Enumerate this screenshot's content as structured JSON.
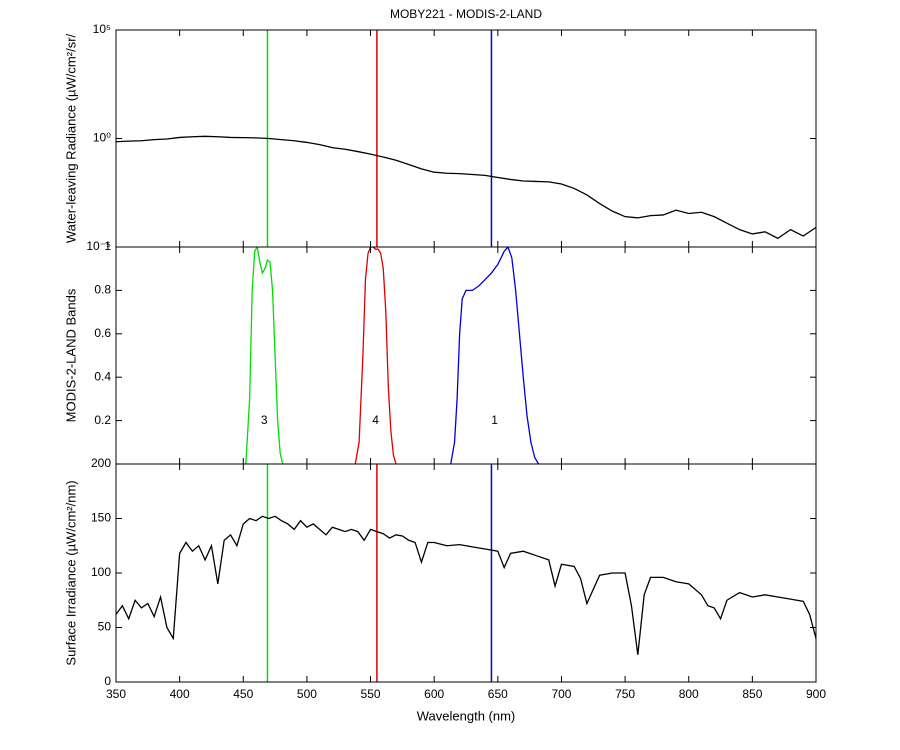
{
  "chart_data": [
    {
      "type": "line",
      "title": "MOBY221 - MODIS-2-LAND",
      "y_label": "Water-leaving Radiance (µW/cm²/sr/",
      "yscale": "log",
      "xlim": [
        350,
        900
      ],
      "ylim": [
        1e-05,
        100000
      ],
      "yticks": [
        {
          "value": 1e-05,
          "label": "10⁻⁵"
        },
        {
          "value": 1,
          "label": "10⁰"
        },
        {
          "value": 100000,
          "label": "10⁵"
        }
      ],
      "color": "#000000",
      "x": [
        350,
        360,
        370,
        380,
        390,
        400,
        410,
        420,
        430,
        440,
        450,
        460,
        470,
        480,
        490,
        500,
        510,
        520,
        530,
        540,
        550,
        560,
        570,
        580,
        590,
        600,
        610,
        620,
        630,
        640,
        650,
        660,
        670,
        680,
        690,
        700,
        710,
        720,
        730,
        740,
        750,
        760,
        770,
        780,
        790,
        800,
        810,
        820,
        830,
        840,
        850,
        860,
        870,
        880,
        890,
        900
      ],
      "values": [
        0.71,
        0.76,
        0.79,
        0.89,
        0.95,
        1.12,
        1.2,
        1.26,
        1.2,
        1.12,
        1.1,
        1.07,
        1.0,
        0.89,
        0.79,
        0.66,
        0.52,
        0.38,
        0.32,
        0.25,
        0.19,
        0.14,
        0.1,
        0.063,
        0.04,
        0.028,
        0.025,
        0.024,
        0.022,
        0.02,
        0.016,
        0.013,
        0.011,
        0.0105,
        0.01,
        0.008,
        0.005,
        0.0025,
        0.001,
        0.00045,
        0.00025,
        0.00022,
        0.00028,
        0.0003,
        0.0005,
        0.00035,
        0.0004,
        0.00025,
        0.000125,
        6.3e-05,
        4e-05,
        5e-05,
        2.5e-05,
        6.3e-05,
        3.2e-05,
        8e-05
      ],
      "vlines": [
        {
          "x": 469,
          "color": "#00dd00"
        },
        {
          "x": 555,
          "color": "#dd0000"
        },
        {
          "x": 645,
          "color": "#0000dd"
        }
      ]
    },
    {
      "type": "line",
      "y_label": "MODIS-2-LAND Bands",
      "xlim": [
        350,
        900
      ],
      "ylim": [
        0,
        1
      ],
      "yticks": [
        0.2,
        0.4,
        0.6,
        0.8,
        1
      ],
      "series": [
        {
          "name": "3",
          "color": "#00dd00",
          "x": [
            452,
            455,
            457,
            459,
            461,
            463,
            465,
            467,
            469,
            471,
            473,
            475,
            477,
            479,
            481
          ],
          "values": [
            0,
            0.3,
            0.8,
            0.98,
            1.0,
            0.93,
            0.88,
            0.9,
            0.94,
            0.93,
            0.8,
            0.5,
            0.2,
            0.05,
            0
          ]
        },
        {
          "name": "4",
          "color": "#dd0000",
          "x": [
            538,
            541,
            544,
            546,
            548,
            550,
            552,
            554,
            556,
            558,
            560,
            562,
            564,
            566,
            568,
            570
          ],
          "values": [
            0,
            0.1,
            0.5,
            0.85,
            0.97,
            1.0,
            1.0,
            0.99,
            0.99,
            0.97,
            0.9,
            0.7,
            0.35,
            0.15,
            0.04,
            0
          ]
        },
        {
          "name": "1",
          "color": "#0000dd",
          "x": [
            613,
            616,
            618,
            620,
            622,
            625,
            630,
            635,
            640,
            645,
            650,
            655,
            658,
            661,
            664,
            667,
            670,
            673,
            676,
            679,
            682
          ],
          "values": [
            0,
            0.1,
            0.3,
            0.6,
            0.76,
            0.8,
            0.8,
            0.82,
            0.85,
            0.88,
            0.92,
            0.98,
            1.0,
            0.95,
            0.8,
            0.6,
            0.4,
            0.22,
            0.1,
            0.03,
            0
          ]
        }
      ]
    },
    {
      "type": "line",
      "y_label": "Surface Irradiance (µW/cm²/nm)",
      "x_label": "Wavelength (nm)",
      "xlim": [
        350,
        900
      ],
      "ylim": [
        0,
        200
      ],
      "xticks": [
        350,
        400,
        450,
        500,
        550,
        600,
        650,
        700,
        750,
        800,
        850,
        900
      ],
      "yticks": [
        0,
        50,
        100,
        150,
        200
      ],
      "color": "#000000",
      "x": [
        350,
        355,
        360,
        365,
        370,
        375,
        380,
        385,
        390,
        395,
        400,
        405,
        410,
        415,
        420,
        425,
        430,
        435,
        440,
        445,
        450,
        455,
        460,
        465,
        470,
        475,
        480,
        485,
        490,
        495,
        500,
        505,
        510,
        515,
        520,
        525,
        530,
        535,
        540,
        545,
        550,
        555,
        560,
        565,
        570,
        575,
        580,
        585,
        590,
        595,
        600,
        610,
        620,
        630,
        640,
        650,
        655,
        660,
        670,
        680,
        690,
        695,
        700,
        710,
        715,
        720,
        725,
        730,
        740,
        750,
        755,
        760,
        765,
        770,
        780,
        790,
        800,
        810,
        815,
        820,
        825,
        830,
        840,
        850,
        860,
        870,
        880,
        890,
        895,
        900
      ],
      "values": [
        62,
        70,
        58,
        75,
        68,
        72,
        60,
        78,
        50,
        40,
        118,
        128,
        120,
        125,
        112,
        125,
        90,
        130,
        135,
        125,
        145,
        150,
        148,
        152,
        150,
        152,
        148,
        145,
        140,
        148,
        142,
        145,
        140,
        135,
        142,
        140,
        138,
        140,
        138,
        130,
        140,
        138,
        136,
        132,
        135,
        134,
        130,
        128,
        110,
        128,
        128,
        125,
        126,
        124,
        122,
        120,
        105,
        118,
        120,
        116,
        112,
        88,
        108,
        106,
        95,
        72,
        85,
        98,
        100,
        100,
        70,
        25,
        80,
        96,
        96,
        92,
        90,
        80,
        70,
        68,
        58,
        75,
        82,
        78,
        80,
        78,
        76,
        74,
        62,
        40
      ],
      "vlines": [
        {
          "x": 469,
          "color": "#00dd00"
        },
        {
          "x": 555,
          "color": "#dd0000"
        },
        {
          "x": 645,
          "color": "#0000dd"
        }
      ]
    }
  ]
}
